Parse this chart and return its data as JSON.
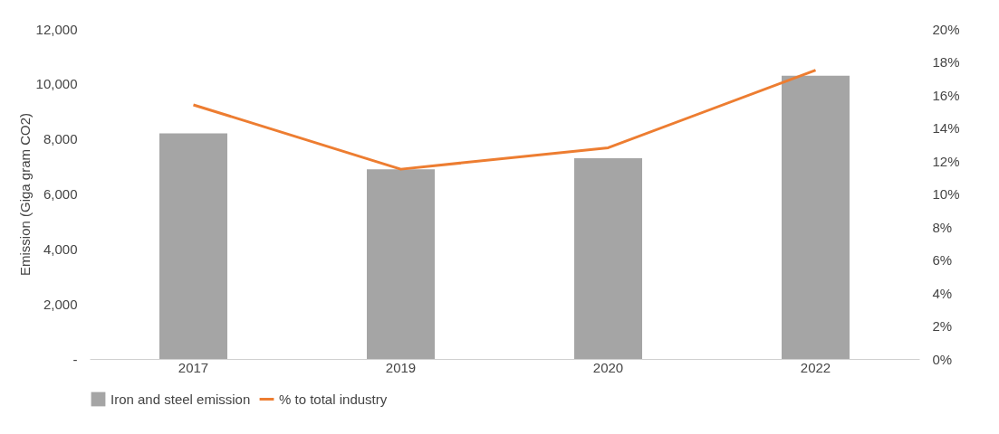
{
  "chart_data": {
    "type": "bar",
    "ylabel": "Emission (Giga gram CO2)",
    "categories": [
      "2017",
      "2019",
      "2020",
      "2022"
    ],
    "series": [
      {
        "name": "Iron and steel emission",
        "color": "#a5a5a5",
        "values": [
          8200,
          6900,
          7300,
          10300
        ]
      },
      {
        "name": "% to total industry",
        "type": "line",
        "axis": "y2",
        "color": "#ed7d31",
        "values": [
          15.4,
          11.5,
          12.8,
          17.5
        ]
      }
    ],
    "ylim": [
      0,
      12000
    ],
    "yticks": [
      {
        "value": 0,
        "label": "-"
      },
      {
        "value": 2000,
        "label": "2,000"
      },
      {
        "value": 4000,
        "label": "4,000"
      },
      {
        "value": 6000,
        "label": "6,000"
      },
      {
        "value": 8000,
        "label": "8,000"
      },
      {
        "value": 10000,
        "label": "10,000"
      },
      {
        "value": 12000,
        "label": "12,000"
      }
    ],
    "y2lim": [
      0,
      20
    ],
    "y2ticks": [
      {
        "value": 0,
        "label": "0%"
      },
      {
        "value": 2,
        "label": "2%"
      },
      {
        "value": 4,
        "label": "4%"
      },
      {
        "value": 6,
        "label": "6%"
      },
      {
        "value": 8,
        "label": "8%"
      },
      {
        "value": 10,
        "label": "10%"
      },
      {
        "value": 12,
        "label": "12%"
      },
      {
        "value": 14,
        "label": "14%"
      },
      {
        "value": 16,
        "label": "16%"
      },
      {
        "value": 18,
        "label": "18%"
      },
      {
        "value": 20,
        "label": "20%"
      }
    ],
    "grid": false,
    "legend": "bottom"
  }
}
